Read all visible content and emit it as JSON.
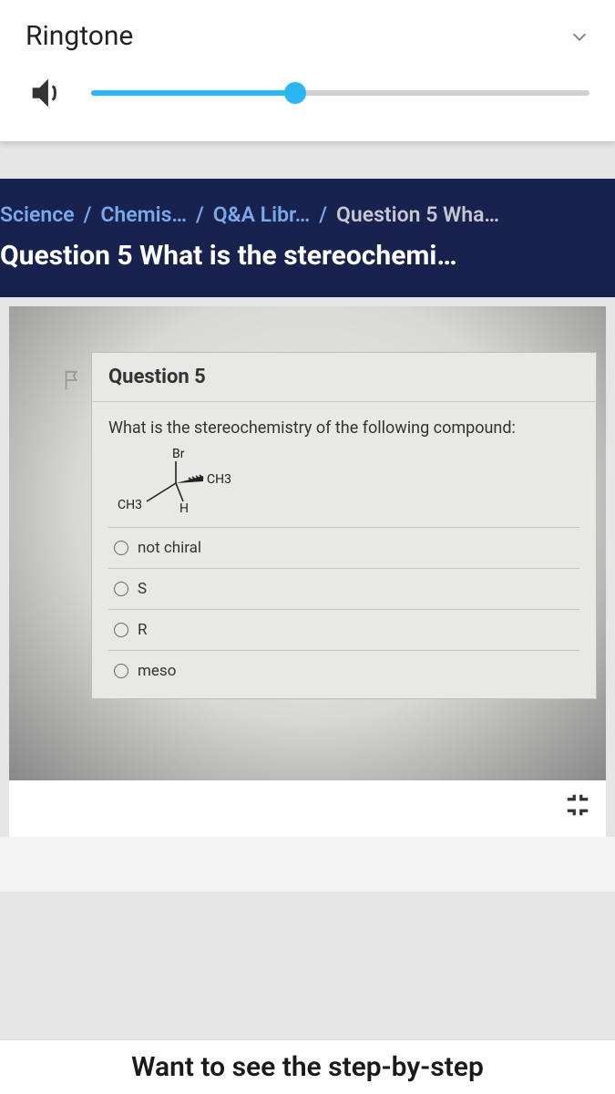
{
  "ringtone": {
    "title": "Ringtone",
    "volume_percent": 41
  },
  "breadcrumb": {
    "items": [
      {
        "label": "Science"
      },
      {
        "label": "Chemis…"
      },
      {
        "label": "Q&A Libr…"
      },
      {
        "label": "Question 5 Wha…"
      }
    ],
    "separator": "/"
  },
  "page_title": "Question 5 What is the stereochemi…",
  "question": {
    "number_label": "Question 5",
    "prompt": "What is the stereochemistry of the following compound:",
    "molecule": {
      "top": "Br",
      "wedge": "CH3",
      "down": "H",
      "left": "CH3",
      "label_fontsize": 14,
      "line_color": "#222"
    },
    "options": [
      {
        "label": "not chiral"
      },
      {
        "label": "S"
      },
      {
        "label": "R"
      },
      {
        "label": "meso"
      }
    ]
  },
  "teaser": "Want to see the step-by-step",
  "colors": {
    "accent_blue": "#29b6f6",
    "band_bg": "#18224f",
    "crumb_link": "#7aa8e8",
    "crumb_current": "#c7c7d0"
  }
}
